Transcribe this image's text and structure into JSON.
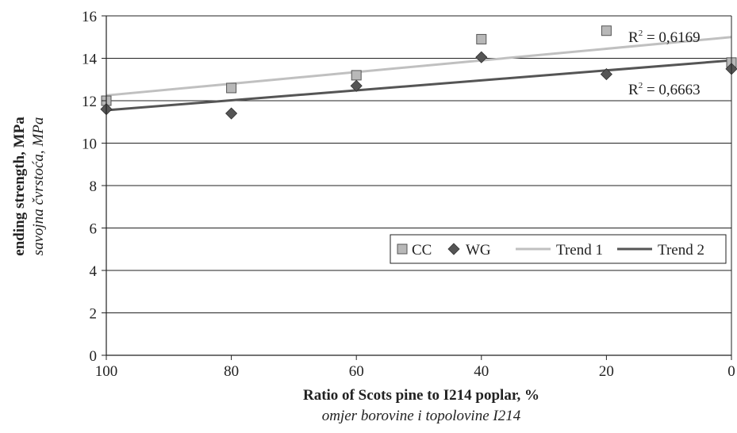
{
  "chart_data": {
    "type": "scatter",
    "xlabel": "Ratio of Scots pine to I214 poplar, %",
    "xlabel_sub": "omjer borovine i topolovine I214",
    "ylabel": "ending strength, MPa",
    "ylabel_sub": "savojna čvrstoća, MPa",
    "x_ticks": [
      "100",
      "80",
      "60",
      "40",
      "20",
      "0"
    ],
    "y_ticks": [
      "0",
      "2",
      "4",
      "6",
      "8",
      "10",
      "12",
      "14",
      "16"
    ],
    "xlim": [
      100,
      0
    ],
    "ylim": [
      0,
      16
    ],
    "grid": "horizontal",
    "legend_position": "right",
    "x": [
      100,
      80,
      60,
      40,
      20,
      0
    ],
    "series": [
      {
        "name": "CC",
        "marker": "square",
        "color": "#b8b8b8",
        "values": [
          12.0,
          12.6,
          13.2,
          14.9,
          15.3,
          13.8
        ]
      },
      {
        "name": "WG",
        "marker": "diamond",
        "color": "#555555",
        "values": [
          11.6,
          11.4,
          12.7,
          14.05,
          13.25,
          13.5
        ]
      }
    ],
    "trends": [
      {
        "name": "Trend 1",
        "color": "#c0c0c0",
        "y_start": 12.25,
        "y_end": 15.0,
        "r2_label": "R",
        "r2_value": " = 0,6169"
      },
      {
        "name": "Trend 2",
        "color": "#555555",
        "y_start": 11.55,
        "y_end": 13.9,
        "r2_label": "R",
        "r2_value": " = 0,6663"
      }
    ],
    "r2_superscript": "2"
  }
}
